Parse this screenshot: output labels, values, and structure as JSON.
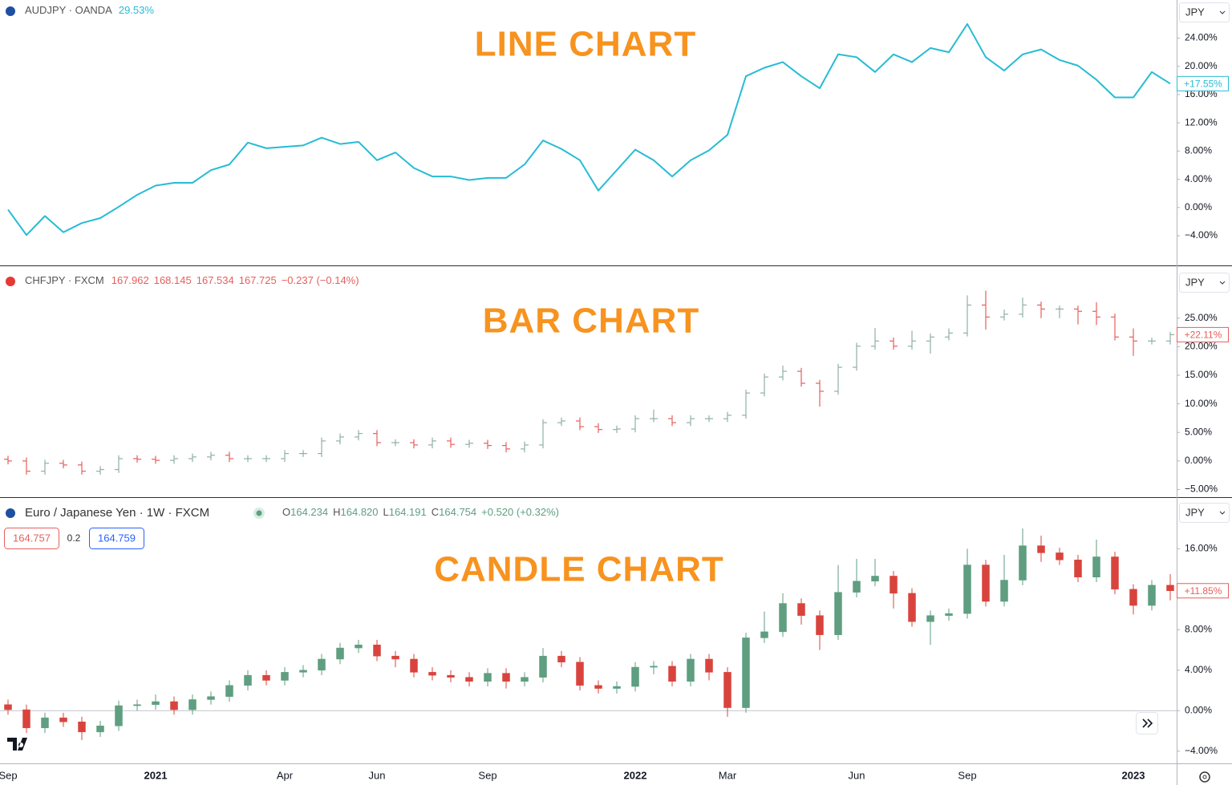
{
  "chart_data": [
    {
      "type": "line",
      "symbol": "AUDJPY · OANDA",
      "change": "29.53%",
      "title": "LINE CHART",
      "currency": "JPY",
      "color": "#26bcd4",
      "tag_color": "#26bcd4",
      "values": [
        -0.3,
        -3.9,
        -1.2,
        -3.5,
        -2.2,
        -1.5,
        0.1,
        1.8,
        3.1,
        3.5,
        3.5,
        5.3,
        6.1,
        9.2,
        8.4,
        8.6,
        8.8,
        9.9,
        9.0,
        9.3,
        6.7,
        7.8,
        5.6,
        4.4,
        4.4,
        3.9,
        4.2,
        4.2,
        6.1,
        9.5,
        8.3,
        6.7,
        2.4,
        5.3,
        8.2,
        6.7,
        4.4,
        6.7,
        8.1,
        10.3,
        18.6,
        19.8,
        20.6,
        18.6,
        16.9,
        21.7,
        21.3,
        19.2,
        21.7,
        20.6,
        22.6,
        22.0,
        26.0,
        21.3,
        19.4,
        21.7,
        22.4,
        20.9,
        20.1,
        18.1,
        15.6,
        15.6,
        19.2,
        17.55
      ],
      "ylim": [
        -8.2,
        29.4
      ],
      "yticks": [
        {
          "value": 24,
          "label": "24.00%"
        },
        {
          "value": 20,
          "label": "20.00%"
        },
        {
          "value": 16,
          "label": "16.00%"
        },
        {
          "value": 12,
          "label": "12.00%"
        },
        {
          "value": 8,
          "label": "8.00%"
        },
        {
          "value": 4,
          "label": "4.00%"
        },
        {
          "value": 0,
          "label": "0.00%"
        },
        {
          "value": -4,
          "label": "−4.00%"
        }
      ],
      "last_price": {
        "value": 17.55,
        "label": "+17.55%"
      }
    },
    {
      "type": "ohlc",
      "symbol": "CHFJPY · FXCM",
      "quote": [
        "167.962",
        "168.145",
        "167.534",
        "167.725",
        "−0.237 (−0.14%)"
      ],
      "title": "BAR CHART",
      "currency": "JPY",
      "up_color": "#8fb0a4",
      "down_color": "#e4605c",
      "tag_color": "#e4605c",
      "open": [
        0.3,
        0,
        -1.8,
        -0.4,
        -0.7,
        -1.8,
        -1.5,
        0.4,
        0.3,
        0.1,
        0.4,
        0.7,
        1.0,
        0.4,
        0.4,
        0.4,
        1.3,
        1.3,
        3.5,
        4.2,
        4.8,
        3.2,
        3.2,
        2.8,
        3.5,
        2.9,
        3.1,
        2.7,
        2.1,
        2.8,
        6.7,
        7.0,
        6.0,
        5.5,
        5.6,
        7.4,
        7.4,
        6.7,
        7.4,
        7.4,
        8.0,
        11.9,
        14.7,
        15.7,
        13.6,
        12.2,
        16.4,
        20.1,
        21.0,
        20.1,
        21.0,
        21.7,
        22.4,
        27.3,
        25.2,
        25.7,
        27.3,
        26.6,
        26.6,
        26.2,
        25.2,
        21.7,
        21.0,
        21.0
      ],
      "high": [
        0.9,
        0.6,
        0.2,
        0.2,
        -0.1,
        -0.9,
        1.0,
        1.0,
        0.9,
        1.0,
        1.3,
        1.6,
        1.6,
        1.0,
        1.0,
        1.9,
        1.9,
        4.1,
        4.8,
        5.4,
        5.4,
        3.8,
        3.8,
        4.1,
        4.1,
        3.7,
        3.7,
        3.3,
        3.4,
        7.3,
        7.6,
        7.6,
        6.6,
        6.2,
        8.0,
        9.0,
        8.0,
        8.0,
        8.0,
        8.6,
        12.5,
        15.3,
        16.7,
        16.3,
        14.2,
        17.0,
        20.7,
        23.3,
        21.6,
        22.8,
        22.3,
        23.2,
        29.0,
        29.8,
        26.5,
        28.6,
        27.9,
        27.2,
        27.2,
        27.8,
        25.8,
        23.2,
        21.6,
        22.6
      ],
      "low": [
        -0.6,
        -2.4,
        -2.4,
        -1.3,
        -2.4,
        -2.4,
        -2.1,
        -0.3,
        -0.5,
        -0.5,
        -0.2,
        0.1,
        -0.2,
        -0.2,
        -0.2,
        -0.2,
        0.7,
        0.7,
        2.9,
        3.6,
        2.6,
        2.6,
        2.2,
        2.2,
        2.3,
        2.3,
        2.1,
        1.5,
        1.5,
        2.2,
        6.1,
        5.4,
        4.9,
        4.9,
        5.0,
        6.8,
        6.1,
        6.1,
        6.8,
        6.8,
        7.4,
        11.3,
        14.1,
        13.0,
        9.5,
        11.6,
        15.8,
        19.5,
        19.5,
        19.5,
        18.8,
        21.1,
        21.8,
        23.0,
        24.6,
        25.1,
        25.0,
        25.0,
        23.9,
        23.8,
        21.1,
        18.4,
        20.4,
        20.4
      ],
      "close": [
        0,
        -1.8,
        -0.4,
        -0.7,
        -1.8,
        -1.5,
        0.4,
        0.3,
        0.1,
        0.4,
        0.7,
        1.0,
        0.4,
        0.4,
        0.4,
        1.3,
        1.3,
        3.5,
        4.2,
        4.8,
        3.2,
        3.2,
        2.8,
        3.5,
        2.9,
        3.1,
        2.7,
        2.1,
        2.8,
        6.7,
        7.0,
        6.0,
        5.5,
        5.6,
        7.4,
        7.4,
        6.7,
        7.4,
        7.4,
        8.0,
        11.9,
        14.7,
        15.7,
        13.6,
        12.2,
        16.4,
        20.1,
        21.0,
        20.1,
        21.0,
        21.7,
        22.4,
        27.3,
        25.2,
        25.7,
        27.3,
        26.6,
        26.6,
        26.2,
        25.2,
        21.7,
        21.0,
        21.0,
        22.11
      ],
      "ylim": [
        -6.2,
        34.1
      ],
      "yticks": [
        {
          "value": 25,
          "label": "25.00%"
        },
        {
          "value": 20,
          "label": "20.00%"
        },
        {
          "value": 15,
          "label": "15.00%"
        },
        {
          "value": 10,
          "label": "10.00%"
        },
        {
          "value": 5,
          "label": "5.00%"
        },
        {
          "value": 0,
          "label": "0.00%"
        },
        {
          "value": -5,
          "label": "−5.00%"
        }
      ],
      "last_price": {
        "value": 22.11,
        "label": "+22.11%"
      }
    },
    {
      "type": "candlestick",
      "symbol": "Euro / Japanese Yen · 1W · FXCM",
      "quote": [
        {
          "key": "O",
          "value": "164.234"
        },
        {
          "key": "H",
          "value": "164.820"
        },
        {
          "key": "L",
          "value": "164.191"
        },
        {
          "key": "C",
          "value": "164.754"
        }
      ],
      "quote_change": "+0.520 (+0.32%)",
      "order": {
        "sell": "164.757",
        "spread": "0.2",
        "buy": "164.759"
      },
      "title": "CANDLE CHART",
      "currency": "JPY",
      "up_color": "#5f9e80",
      "down_color": "#d8443d",
      "tag_color": "#e4605c",
      "baseline": 0,
      "open": [
        0.6,
        0.1,
        -1.7,
        -0.7,
        -1.1,
        -2.1,
        -1.5,
        0.5,
        0.6,
        0.9,
        0.1,
        1.1,
        1.4,
        2.5,
        3.5,
        3.0,
        3.8,
        4.0,
        5.1,
        6.2,
        6.5,
        5.4,
        5.1,
        3.8,
        3.5,
        3.3,
        2.9,
        3.7,
        2.9,
        3.3,
        5.4,
        4.8,
        2.5,
        2.2,
        2.4,
        4.3,
        4.4,
        2.9,
        5.1,
        3.8,
        0.3,
        7.2,
        7.8,
        10.6,
        9.4,
        7.5,
        11.7,
        12.8,
        13.3,
        11.6,
        8.8,
        9.4,
        9.6,
        14.4,
        10.8,
        12.9,
        16.3,
        15.6,
        14.9,
        13.2,
        15.2,
        12.0,
        10.4,
        12.4
      ],
      "high": [
        1.1,
        0.6,
        -0.2,
        -0.2,
        -0.6,
        -1.0,
        1.0,
        1.1,
        1.6,
        1.4,
        1.6,
        1.9,
        3.0,
        4.0,
        4.0,
        4.3,
        4.5,
        5.6,
        6.7,
        7.0,
        7.0,
        5.9,
        5.6,
        4.3,
        4.0,
        3.8,
        4.2,
        4.2,
        3.8,
        6.2,
        5.9,
        5.3,
        3.0,
        2.9,
        4.8,
        4.9,
        4.9,
        5.6,
        5.6,
        4.3,
        7.7,
        9.8,
        11.6,
        11.1,
        9.9,
        14.4,
        15.0,
        15.0,
        13.8,
        12.1,
        9.9,
        10.1,
        16.0,
        14.9,
        15.4,
        18.0,
        17.3,
        16.1,
        15.4,
        16.9,
        15.7,
        12.5,
        12.9,
        13.5
      ],
      "low": [
        -0.4,
        -2.2,
        -2.2,
        -1.6,
        -2.9,
        -2.6,
        -2.0,
        0.0,
        0.1,
        -0.4,
        -0.4,
        0.6,
        0.9,
        2.0,
        2.5,
        2.5,
        3.3,
        3.5,
        4.6,
        5.7,
        4.9,
        4.3,
        3.3,
        3.0,
        2.8,
        2.4,
        2.4,
        2.2,
        2.4,
        2.8,
        4.3,
        2.0,
        1.7,
        1.7,
        1.9,
        3.6,
        2.4,
        2.4,
        3.0,
        -0.6,
        -0.2,
        6.7,
        7.3,
        8.5,
        6.0,
        7.0,
        11.2,
        12.3,
        10.1,
        8.3,
        6.5,
        8.9,
        9.1,
        10.3,
        10.3,
        12.4,
        14.7,
        14.4,
        12.7,
        12.7,
        11.5,
        9.5,
        9.9,
        10.9
      ],
      "close": [
        0.1,
        -1.7,
        -0.7,
        -1.1,
        -2.1,
        -1.5,
        0.5,
        0.6,
        0.9,
        0.1,
        1.1,
        1.4,
        2.5,
        3.5,
        3.0,
        3.8,
        4.0,
        5.1,
        6.2,
        6.5,
        5.4,
        5.1,
        3.8,
        3.5,
        3.3,
        2.9,
        3.7,
        2.9,
        3.3,
        5.4,
        4.8,
        2.5,
        2.2,
        2.4,
        4.3,
        4.4,
        2.9,
        5.1,
        3.8,
        0.3,
        7.2,
        7.8,
        10.6,
        9.4,
        7.5,
        11.7,
        12.8,
        13.3,
        11.6,
        8.8,
        9.4,
        9.6,
        14.4,
        10.8,
        12.9,
        16.3,
        15.6,
        14.9,
        13.2,
        15.2,
        12.0,
        10.4,
        12.4,
        11.85
      ],
      "ylim": [
        -5.2,
        21.1
      ],
      "yticks": [
        {
          "value": 16,
          "label": "16.00%"
        },
        {
          "value": 12,
          "label": "12.00%"
        },
        {
          "value": 8,
          "label": "8.00%"
        },
        {
          "value": 4,
          "label": "4.00%"
        },
        {
          "value": 0,
          "label": "0.00%"
        },
        {
          "value": -4,
          "label": "−4.00%"
        }
      ],
      "last_price": {
        "value": 11.85,
        "label": "+11.85%"
      }
    }
  ],
  "x_axis": {
    "categories": [
      "Sep",
      null,
      null,
      null,
      null,
      null,
      null,
      null,
      "2021",
      null,
      null,
      null,
      null,
      null,
      null,
      "Apr",
      null,
      null,
      null,
      null,
      "Jun",
      null,
      null,
      null,
      null,
      null,
      "Sep",
      null,
      null,
      null,
      null,
      null,
      null,
      null,
      "2022",
      null,
      null,
      null,
      null,
      "Mar",
      null,
      null,
      null,
      null,
      null,
      null,
      "Jun",
      null,
      null,
      null,
      null,
      null,
      "Sep",
      null,
      null,
      null,
      null,
      null,
      null,
      null,
      null,
      "2023",
      null,
      null
    ]
  }
}
